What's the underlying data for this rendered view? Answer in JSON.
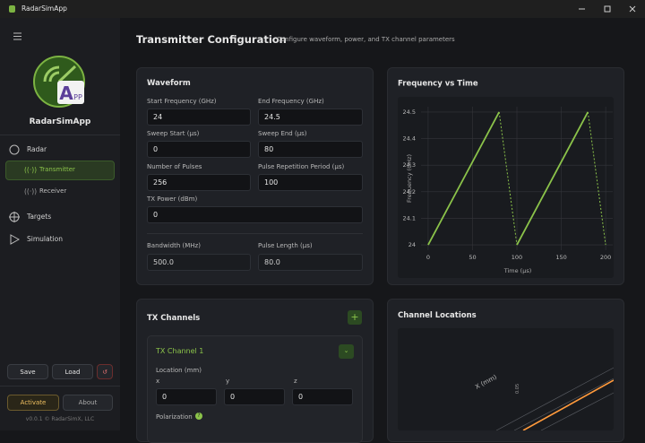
{
  "window": {
    "title": "RadarSimApp"
  },
  "sidebar": {
    "logo_a": "A",
    "logo_pp": "PP",
    "app_name": "RadarSimApp",
    "nav": [
      "Radar",
      "Transmitter",
      "Receiver",
      "Targets",
      "Simulation"
    ],
    "save": "Save",
    "load": "Load",
    "activate": "Activate",
    "about": "About",
    "version": "v0.0.1 © RadarSimX, LLC"
  },
  "header": {
    "title": "Transmitter Configuration",
    "subtitle": "Configure waveform, power, and TX channel parameters"
  },
  "waveform": {
    "title": "Waveform",
    "fields": [
      {
        "label": "Start Frequency (GHz)",
        "value": "24"
      },
      {
        "label": "End Frequency (GHz)",
        "value": "24.5"
      },
      {
        "label": "Sweep Start (μs)",
        "value": "0"
      },
      {
        "label": "Sweep End (μs)",
        "value": "80"
      },
      {
        "label": "Number of Pulses",
        "value": "256"
      },
      {
        "label": "Pulse Repetition Period (μs)",
        "value": "100"
      },
      {
        "label": "TX Power (dBm)",
        "value": "0"
      },
      {
        "label": "Bandwidth (MHz)",
        "value": "500.0"
      },
      {
        "label": "Pulse Length (μs)",
        "value": "80.0"
      }
    ]
  },
  "chart_data": {
    "type": "line",
    "title": "Frequency vs Time",
    "x_label": "Time (μs)",
    "y_label": "Frequency (GHz)",
    "x": [
      0,
      80,
      100,
      180,
      200
    ],
    "series": [
      {
        "name": "Frequency",
        "color": "#8bc34a",
        "values": [
          24,
          24.5,
          24,
          24.5,
          24
        ]
      }
    ],
    "xlim": [
      -8,
      208
    ],
    "xticks": [
      0,
      50,
      100,
      150,
      200
    ],
    "ylim": [
      23.98,
      24.52
    ],
    "yticks": [
      24,
      24.1,
      24.2,
      24.3,
      24.4,
      24.5
    ],
    "grid": true
  },
  "tx_channels": {
    "title": "TX Channels",
    "channel": "TX Channel 1",
    "location_label": "Location (mm)",
    "axes": [
      "x",
      "y",
      "z"
    ],
    "location": [
      "0",
      "0",
      "0"
    ],
    "polarization_label": "Polarization"
  },
  "channel_locations": {
    "title": "Channel Locations",
    "axis_label": "X (mm)",
    "tick": "0.05"
  }
}
